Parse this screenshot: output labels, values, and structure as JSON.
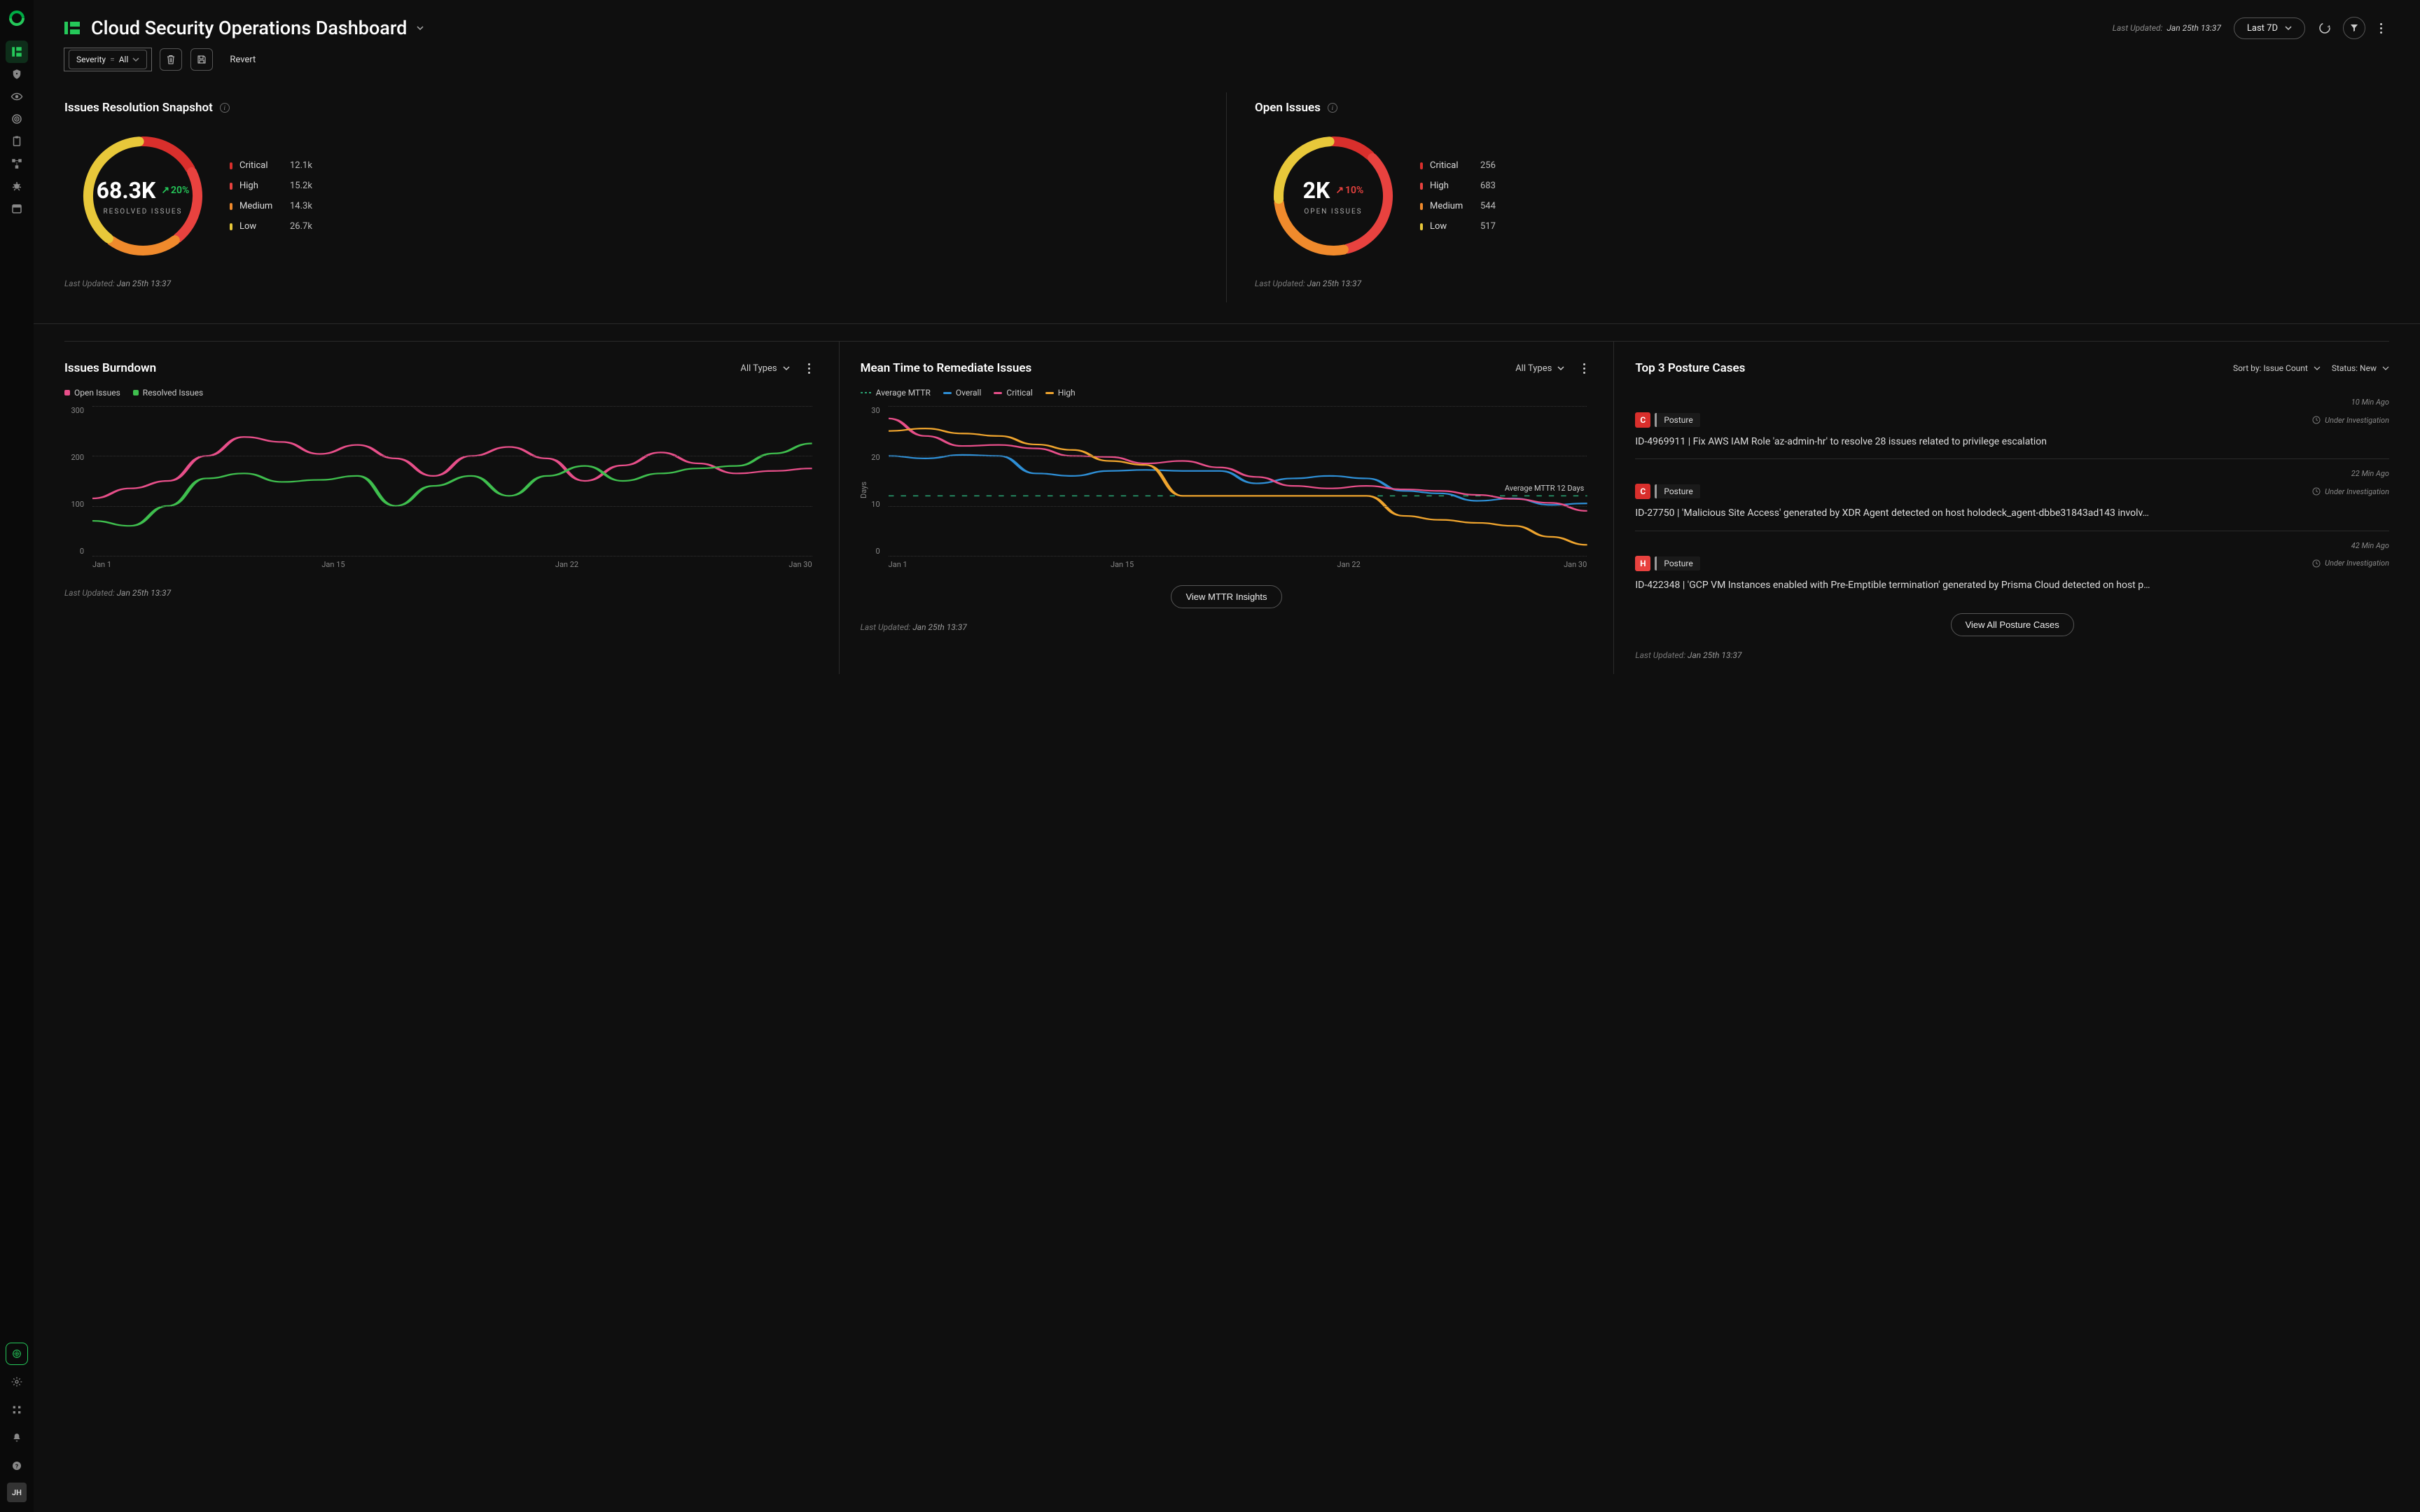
{
  "colors": {
    "bg": "#0f0f0f",
    "sidebar": "#0a0a0a",
    "border": "#2a2a2a",
    "accent": "#25c95a",
    "critical": "#d92f2c",
    "high": "#e8423f",
    "medium": "#f08a2c",
    "low": "#e8c83a",
    "blue": "#2e8fd6",
    "pink": "#e84f8a",
    "orange": "#f0a52e",
    "green_line": "#3fbf4e",
    "text": "#e8e8e8",
    "muted": "#888"
  },
  "sidebar": {
    "avatar": "JH",
    "items": [
      {
        "name": "dashboard",
        "active": true
      },
      {
        "name": "shield"
      },
      {
        "name": "eye"
      },
      {
        "name": "target"
      },
      {
        "name": "clipboard"
      },
      {
        "name": "nodes"
      },
      {
        "name": "bug"
      },
      {
        "name": "calendar"
      }
    ],
    "bottom": [
      {
        "name": "radar",
        "ring": true
      },
      {
        "name": "gear"
      },
      {
        "name": "apps"
      },
      {
        "name": "bell"
      },
      {
        "name": "help"
      }
    ]
  },
  "header": {
    "title": "Cloud Security Operations Dashboard",
    "last_updated_label": "Last Updated:",
    "last_updated_value": "Jan 25th 13:37",
    "range": "Last 7D"
  },
  "filter": {
    "severity_label": "Severity",
    "severity_op": "=",
    "severity_value": "All",
    "revert": "Revert"
  },
  "resolution": {
    "title": "Issues Resolution Snapshot",
    "value": "68.3K",
    "delta": "20%",
    "delta_dir": "up",
    "sub": "RESOLVED ISSUES",
    "legend": [
      {
        "label": "Critical",
        "value": "12.1k",
        "color": "#d92f2c",
        "arc": 64
      },
      {
        "label": "High",
        "value": "15.2k",
        "color": "#e8423f",
        "arc": 80
      },
      {
        "label": "Medium",
        "value": "14.3k",
        "color": "#f08a2c",
        "arc": 75
      },
      {
        "label": "Low",
        "value": "26.7k",
        "color": "#e8c83a",
        "arc": 141
      }
    ],
    "footer_label": "Last Updated:",
    "footer_value": "Jan 25th  13:37"
  },
  "open": {
    "title": "Open Issues",
    "value": "2K",
    "delta": "10%",
    "delta_dir": "down",
    "sub": "OPEN ISSUES",
    "legend": [
      {
        "label": "Critical",
        "value": "256",
        "color": "#d92f2c",
        "arc": 46
      },
      {
        "label": "High",
        "value": "683",
        "color": "#e8423f",
        "arc": 123
      },
      {
        "label": "Medium",
        "value": "544",
        "color": "#f08a2c",
        "arc": 98
      },
      {
        "label": "Low",
        "value": "517",
        "color": "#e8c83a",
        "arc": 93
      }
    ],
    "footer_label": "Last Updated:",
    "footer_value": "Jan 25th  13:37"
  },
  "burndown": {
    "title": "Issues Burndown",
    "dropdown": "All Types",
    "legend": [
      {
        "label": "Open Issues",
        "color": "#e84f8a"
      },
      {
        "label": "Resolved Issues",
        "color": "#3fbf4e"
      }
    ],
    "y_ticks": [
      "300",
      "200",
      "100",
      "0"
    ],
    "x_ticks": [
      "Jan 1",
      "Jan 15",
      "Jan 22",
      "Jan 30"
    ],
    "ylim": [
      0,
      300
    ],
    "series": {
      "open": [
        115,
        135,
        150,
        200,
        238,
        228,
        204,
        222,
        195,
        160,
        200,
        218,
        195,
        150,
        181,
        207,
        185,
        165,
        170,
        175
      ],
      "resolved": [
        70,
        60,
        100,
        155,
        165,
        148,
        152,
        160,
        100,
        140,
        160,
        120,
        160,
        180,
        150,
        165,
        175,
        180,
        205,
        225
      ]
    },
    "footer_label": "Last Updated:",
    "footer_value": "Jan 25th  13:37"
  },
  "mttr": {
    "title": "Mean Time to Remediate Issues",
    "dropdown": "All Types",
    "ylabel": "Days",
    "legend": [
      {
        "label": "Average MTTR",
        "dash": true
      },
      {
        "label": "Overall",
        "color": "#2e8fd6"
      },
      {
        "label": "Critical",
        "color": "#e84f8a"
      },
      {
        "label": "High",
        "color": "#f0a52e"
      }
    ],
    "y_ticks": [
      "30",
      "20",
      "10",
      "0"
    ],
    "x_ticks": [
      "Jan 1",
      "Jan 15",
      "Jan 22",
      "Jan 30"
    ],
    "ylim": [
      0,
      30
    ],
    "avg_value": 12,
    "annotation": "Average MTTR 12 Days",
    "series": {
      "overall": [
        20,
        19.5,
        20.2,
        20,
        16.5,
        16,
        17,
        17.2,
        17,
        17,
        14.5,
        15.5,
        16,
        15.5,
        13,
        12.5,
        11,
        11.5,
        10.2,
        10.5
      ],
      "critical": [
        27.5,
        24,
        22,
        22.2,
        21.5,
        20,
        19.8,
        18.5,
        19,
        17.7,
        15.8,
        14,
        13.5,
        14,
        13.3,
        13,
        12.2,
        11.4,
        10.6,
        9
      ],
      "high": [
        25,
        25.5,
        24.5,
        24,
        22.3,
        21.2,
        19,
        18.2,
        12,
        12,
        12,
        12,
        12,
        12,
        8,
        7.2,
        6.6,
        6,
        3.8,
        2.2
      ]
    },
    "button": "View MTTR Insights",
    "footer_label": "Last Updated:",
    "footer_value": "Jan 25th  13:37"
  },
  "posture": {
    "title": "Top 3 Posture Cases",
    "sort_label": "Sort by: Issue Count",
    "status_label": "Status: New",
    "cases": [
      {
        "time": "10 Min Ago",
        "sev": "C",
        "sev_color": "#d92f2c",
        "cat": "Posture",
        "status": "Under Investigation",
        "desc": "ID-4969911 | Fix AWS IAM Role 'az-admin-hr' to resolve 28 issues related to privilege escalation"
      },
      {
        "time": "22 Min Ago",
        "sev": "C",
        "sev_color": "#d92f2c",
        "cat": "Posture",
        "status": "Under Investigation",
        "desc": "ID-27750 | 'Malicious Site Access' generated by XDR Agent detected on host holodeck_agent-dbbe31843ad143 involv…"
      },
      {
        "time": "42 Min Ago",
        "sev": "H",
        "sev_color": "#e8423f",
        "cat": "Posture",
        "status": "Under Investigation",
        "desc": "ID-422348 | 'GCP VM Instances enabled with Pre-Emptible termination' generated by Prisma Cloud detected on host p…"
      }
    ],
    "button": "View All Posture Cases",
    "footer_label": "Last Updated:",
    "footer_value": "Jan 25th  13:37"
  }
}
